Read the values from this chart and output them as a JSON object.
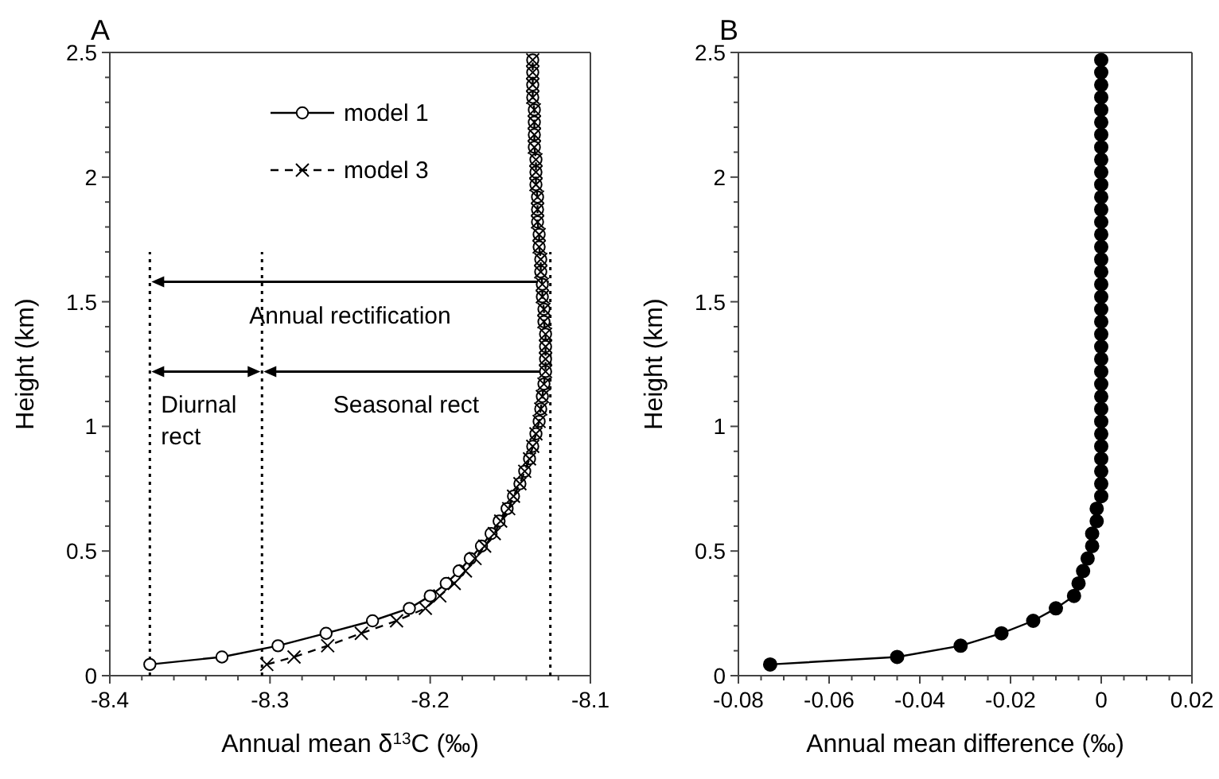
{
  "chart_data": [
    {
      "type": "line",
      "title": "A",
      "xlabel": "Annual mean δ$^{13}$C (‰)",
      "ylabel": "Height (km)",
      "legend": "top",
      "grid": false,
      "xlim": [
        -8.4,
        -8.1
      ],
      "xticks": [
        -8.4,
        {
          "value": -8.38,
          "label": null
        },
        {
          "value": -8.36,
          "label": null
        },
        {
          "value": -8.34,
          "label": null
        },
        {
          "value": -8.32,
          "label": null
        },
        -8.3,
        {
          "value": -8.28,
          "label": null
        },
        {
          "value": -8.26,
          "label": null
        },
        {
          "value": -8.24,
          "label": null
        },
        {
          "value": -8.22,
          "label": null
        },
        -8.2,
        {
          "value": -8.18,
          "label": null
        },
        {
          "value": -8.16,
          "label": null
        },
        {
          "value": -8.14,
          "label": null
        },
        {
          "value": -8.12,
          "label": null
        },
        -8.1
      ],
      "ylim": [
        0,
        2.5
      ],
      "yticks": [
        0,
        {
          "value": 0.1,
          "label": null
        },
        {
          "value": 0.2,
          "label": null
        },
        {
          "value": 0.3,
          "label": null
        },
        {
          "value": 0.4,
          "label": null
        },
        0.5,
        {
          "value": 0.6,
          "label": null
        },
        {
          "value": 0.7,
          "label": null
        },
        {
          "value": 0.8,
          "label": null
        },
        {
          "value": 0.9,
          "label": null
        },
        1,
        {
          "value": 1.1,
          "label": null
        },
        {
          "value": 1.2,
          "label": null
        },
        {
          "value": 1.3,
          "label": null
        },
        {
          "value": 1.4,
          "label": null
        },
        1.5,
        {
          "value": 1.6,
          "label": null
        },
        {
          "value": 1.7,
          "label": null
        },
        {
          "value": 1.8,
          "label": null
        },
        {
          "value": 1.9,
          "label": null
        },
        2,
        {
          "value": 2.1,
          "label": null
        },
        {
          "value": 2.2,
          "label": null
        },
        {
          "value": 2.3,
          "label": null
        },
        {
          "value": 2.4,
          "label": null
        },
        2.5
      ],
      "series": [
        {
          "name": "model 1",
          "color": "#000000",
          "marker": "circle",
          "line_style": "solid",
          "x": [
            -8.375,
            -8.33,
            -8.295,
            -8.265,
            -8.236,
            -8.213,
            -8.2,
            -8.19,
            -8.182,
            -8.175,
            -8.168,
            -8.162,
            -8.157,
            -8.152,
            -8.148,
            -8.144,
            -8.141,
            -8.138,
            -8.136,
            -8.134,
            -8.132,
            -8.131,
            -8.13,
            -8.129,
            -8.128,
            -8.128,
            -8.128,
            -8.128,
            -8.129,
            -8.129,
            -8.13,
            -8.13,
            -8.131,
            -8.131,
            -8.132,
            -8.132,
            -8.133,
            -8.133,
            -8.133,
            -8.134,
            -8.134,
            -8.134,
            -8.135,
            -8.135,
            -8.135,
            -8.135,
            -8.136,
            -8.136,
            -8.136,
            -8.136
          ],
          "values": [
            0.045,
            0.075,
            0.12,
            0.17,
            0.22,
            0.27,
            0.32,
            0.37,
            0.42,
            0.47,
            0.52,
            0.57,
            0.62,
            0.67,
            0.72,
            0.77,
            0.82,
            0.87,
            0.92,
            0.97,
            1.02,
            1.07,
            1.12,
            1.17,
            1.22,
            1.27,
            1.32,
            1.37,
            1.42,
            1.47,
            1.52,
            1.57,
            1.62,
            1.67,
            1.72,
            1.77,
            1.82,
            1.87,
            1.92,
            1.97,
            2.02,
            2.07,
            2.12,
            2.17,
            2.22,
            2.27,
            2.32,
            2.37,
            2.42,
            2.47
          ]
        },
        {
          "name": "model 3",
          "color": "#000000",
          "marker": "cross",
          "line_style": "dashed",
          "x": [
            -8.302,
            -8.285,
            -8.264,
            -8.243,
            -8.221,
            -8.203,
            -8.194,
            -8.185,
            -8.178,
            -8.172,
            -8.166,
            -8.16,
            -8.156,
            -8.151,
            -8.148,
            -8.144,
            -8.141,
            -8.138,
            -8.136,
            -8.134,
            -8.132,
            -8.131,
            -8.13,
            -8.129,
            -8.128,
            -8.128,
            -8.128,
            -8.128,
            -8.129,
            -8.129,
            -8.13,
            -8.13,
            -8.131,
            -8.131,
            -8.132,
            -8.132,
            -8.133,
            -8.133,
            -8.133,
            -8.134,
            -8.134,
            -8.134,
            -8.135,
            -8.135,
            -8.135,
            -8.135,
            -8.136,
            -8.136,
            -8.136,
            -8.136
          ],
          "values": [
            0.045,
            0.075,
            0.12,
            0.17,
            0.22,
            0.27,
            0.32,
            0.37,
            0.42,
            0.47,
            0.52,
            0.57,
            0.62,
            0.67,
            0.72,
            0.77,
            0.82,
            0.87,
            0.92,
            0.97,
            1.02,
            1.07,
            1.12,
            1.17,
            1.22,
            1.27,
            1.32,
            1.37,
            1.42,
            1.47,
            1.52,
            1.57,
            1.62,
            1.67,
            1.72,
            1.77,
            1.82,
            1.87,
            1.92,
            1.97,
            2.02,
            2.07,
            2.12,
            2.17,
            2.22,
            2.27,
            2.32,
            2.37,
            2.42,
            2.47
          ]
        }
      ],
      "ref_lines": [
        {
          "axis": "x",
          "value": -8.375,
          "line_style": "dotted",
          "color": "#000000"
        },
        {
          "axis": "x",
          "value": -8.305,
          "line_style": "dotted",
          "color": "#000000"
        },
        {
          "axis": "x",
          "value": -8.125,
          "line_style": "dotted",
          "color": "#000000"
        }
      ],
      "annotations": [
        "Annual rectification",
        "Diurnal\nrect",
        "Seasonal rect"
      ]
    },
    {
      "type": "line",
      "title": "B",
      "xlabel": "Annual mean difference (‰)",
      "ylabel": "Height (km)",
      "grid": false,
      "xlim": [
        -0.08,
        0.02
      ],
      "xticks": [
        -0.08,
        {
          "value": -0.075,
          "label": null
        },
        {
          "value": -0.07,
          "label": null
        },
        {
          "value": -0.065,
          "label": null
        },
        -0.06,
        {
          "value": -0.055,
          "label": null
        },
        {
          "value": -0.05,
          "label": null
        },
        {
          "value": -0.045,
          "label": null
        },
        -0.04,
        {
          "value": -0.035,
          "label": null
        },
        {
          "value": -0.03,
          "label": null
        },
        {
          "value": -0.025,
          "label": null
        },
        -0.02,
        {
          "value": -0.015,
          "label": null
        },
        {
          "value": -0.01,
          "label": null
        },
        {
          "value": -0.005,
          "label": null
        },
        0,
        {
          "value": 0.005,
          "label": null
        },
        {
          "value": 0.01,
          "label": null
        },
        {
          "value": 0.015,
          "label": null
        },
        0.02
      ],
      "ylim": [
        0,
        2.5
      ],
      "yticks": [
        0,
        {
          "value": 0.1,
          "label": null
        },
        {
          "value": 0.2,
          "label": null
        },
        {
          "value": 0.3,
          "label": null
        },
        {
          "value": 0.4,
          "label": null
        },
        0.5,
        {
          "value": 0.6,
          "label": null
        },
        {
          "value": 0.7,
          "label": null
        },
        {
          "value": 0.8,
          "label": null
        },
        {
          "value": 0.9,
          "label": null
        },
        1,
        {
          "value": 1.1,
          "label": null
        },
        {
          "value": 1.2,
          "label": null
        },
        {
          "value": 1.3,
          "label": null
        },
        {
          "value": 1.4,
          "label": null
        },
        1.5,
        {
          "value": 1.6,
          "label": null
        },
        {
          "value": 1.7,
          "label": null
        },
        {
          "value": 1.8,
          "label": null
        },
        {
          "value": 1.9,
          "label": null
        },
        2,
        {
          "value": 2.1,
          "label": null
        },
        {
          "value": 2.2,
          "label": null
        },
        {
          "value": 2.3,
          "label": null
        },
        {
          "value": 2.4,
          "label": null
        },
        2.5
      ],
      "series": [
        {
          "color": "#000000",
          "marker": "circle",
          "line_style": "solid",
          "x": [
            -0.073,
            -0.045,
            -0.031,
            -0.022,
            -0.015,
            -0.01,
            -0.006,
            -0.005,
            -0.004,
            -0.003,
            -0.002,
            -0.002,
            -0.001,
            -0.001,
            0,
            0,
            0,
            0,
            0,
            0,
            0,
            0,
            0,
            0,
            0,
            0,
            0,
            0,
            0,
            0,
            0,
            0,
            0,
            0,
            0,
            0,
            0,
            0,
            0,
            0,
            0,
            0,
            0,
            0,
            0,
            0,
            0,
            0,
            0,
            0
          ],
          "values": [
            0.045,
            0.075,
            0.12,
            0.17,
            0.22,
            0.27,
            0.32,
            0.37,
            0.42,
            0.47,
            0.52,
            0.57,
            0.62,
            0.67,
            0.72,
            0.77,
            0.82,
            0.87,
            0.92,
            0.97,
            1.02,
            1.07,
            1.12,
            1.17,
            1.22,
            1.27,
            1.32,
            1.37,
            1.42,
            1.47,
            1.52,
            1.57,
            1.62,
            1.67,
            1.72,
            1.77,
            1.82,
            1.87,
            1.92,
            1.97,
            2.02,
            2.07,
            2.12,
            2.17,
            2.22,
            2.27,
            2.32,
            2.37,
            2.42,
            2.47
          ]
        }
      ]
    }
  ]
}
